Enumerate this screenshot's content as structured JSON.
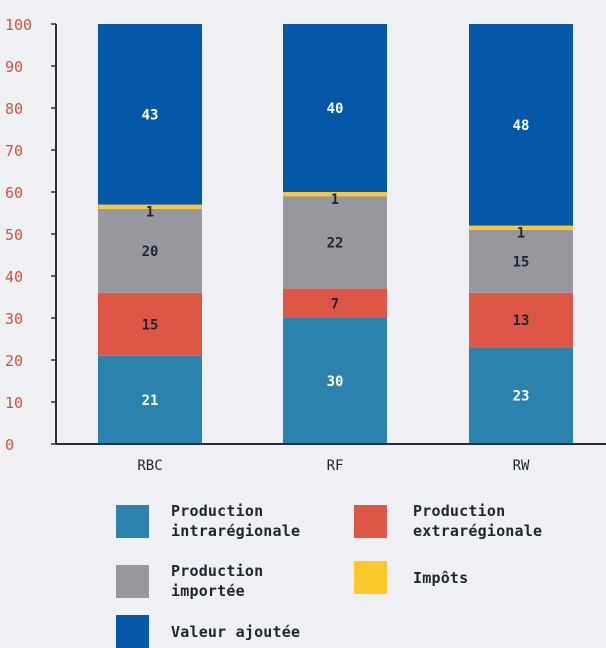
{
  "chart_data": {
    "type": "bar",
    "stacked": true,
    "categories": [
      "RBC",
      "RF",
      "RW"
    ],
    "ylim": [
      0,
      100
    ],
    "yticks": [
      0,
      10,
      20,
      30,
      40,
      50,
      60,
      70,
      80,
      90,
      100
    ],
    "grid": false,
    "legend_position": "bottom",
    "series": [
      {
        "name": "Production intrarégionale",
        "color": "#2b83ad",
        "values": [
          21,
          30,
          23
        ]
      },
      {
        "name": "Production extrarégionale",
        "color": "#de5746",
        "values": [
          15,
          7,
          13
        ]
      },
      {
        "name": "Production importée",
        "color": "#96989d",
        "values": [
          20,
          22,
          15
        ]
      },
      {
        "name": "Impôts",
        "color": "#fdc82a",
        "values": [
          1,
          1,
          1
        ]
      },
      {
        "name": "Valeur ajoutée",
        "color": "#0557a7",
        "values": [
          43,
          40,
          48
        ]
      }
    ]
  },
  "legend": {
    "items": [
      {
        "label": "Production\nintrarégionale",
        "color": "#2b83ad"
      },
      {
        "label": "Production\nextrarégionale",
        "color": "#de5746"
      },
      {
        "label": "Production\nimportée",
        "color": "#96989d"
      },
      {
        "label": "Impôts",
        "color": "#fdc82a"
      },
      {
        "label": "Valeur ajoutée",
        "color": "#0557a7"
      }
    ]
  },
  "colors": {
    "ytick_text": "#d2523e",
    "axis": "#2a2d33",
    "dark_label": "#1f2530",
    "light_label": "#ffffff"
  }
}
